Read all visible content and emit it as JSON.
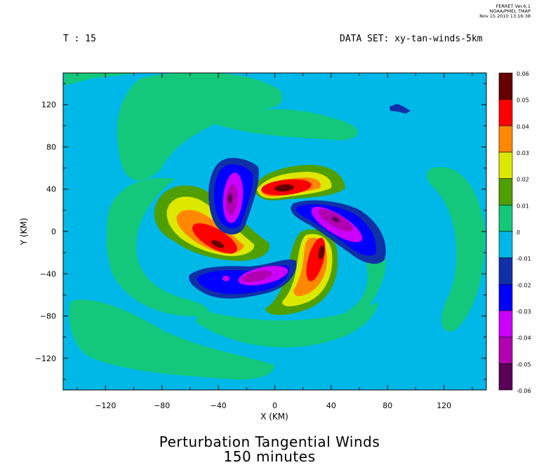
{
  "stamp": {
    "line1": "FERRET Ver.6.1",
    "line2": "NOAA/PMEL TMAP",
    "line3": "Nov 15 2010 13:16:38"
  },
  "header": {
    "time_label": "T : 15",
    "dataset_label": "DATA SET: xy-tan-winds-5km"
  },
  "title": {
    "line1": "Perturbation Tangential Winds",
    "line2": "150 minutes"
  },
  "chart_data": {
    "type": "heatmap",
    "title": "Perturbation Tangential Winds",
    "subtitle": "150 minutes",
    "xlabel": "X (KM)",
    "ylabel": "Y (KM)",
    "xlim": [
      -150,
      150
    ],
    "ylim": [
      -150,
      150
    ],
    "xticks": [
      -120,
      -80,
      -40,
      0,
      40,
      80,
      120
    ],
    "yticks": [
      120,
      80,
      40,
      0,
      -40,
      -80,
      -120
    ],
    "colorbar": {
      "levels": [
        0.06,
        0.05,
        0.04,
        0.03,
        0.02,
        0.01,
        0,
        -0.01,
        -0.02,
        -0.03,
        -0.04,
        -0.05,
        -0.06
      ],
      "level_labels": [
        "0.06",
        "0.05",
        "0.04",
        "0.03",
        "0.02",
        "0.01",
        "0",
        "-0.01",
        "-0.02",
        "-0.03",
        "-0.04",
        "-0.05",
        "-0.06"
      ],
      "colors": [
        "#660000",
        "#ff0000",
        "#ff8800",
        "#dde800",
        "#4f9f00",
        "#13c87a",
        "#00b8e8",
        "#1030a8",
        "#0000ff",
        "#cc00ff",
        "#b000b0",
        "#5a0058"
      ]
    },
    "features": [
      {
        "sign": "positive",
        "peak_value": 0.05,
        "center_x": 2,
        "center_y": 42
      },
      {
        "sign": "positive",
        "peak_value": 0.05,
        "center_x": -38,
        "center_y": -12
      },
      {
        "sign": "positive",
        "peak_value": 0.05,
        "center_x": 32,
        "center_y": -20
      },
      {
        "sign": "negative",
        "peak_value": -0.05,
        "center_x": -28,
        "center_y": 30
      },
      {
        "sign": "negative",
        "peak_value": -0.05,
        "center_x": 38,
        "center_y": 12
      },
      {
        "sign": "negative",
        "peak_value": -0.04,
        "center_x": -20,
        "center_y": -38
      }
    ]
  }
}
